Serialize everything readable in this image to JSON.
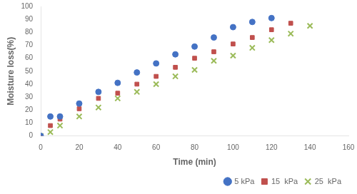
{
  "chart_data": {
    "type": "scatter",
    "x_label": "Time (min)",
    "y_label": "Moisture loss(%)",
    "series": [
      {
        "name": "5 kPa",
        "color": "#4472C4",
        "marker": "circle",
        "x": [
          0,
          5,
          10,
          20,
          30,
          40,
          50,
          60,
          70,
          80,
          90,
          100,
          110,
          120
        ],
        "values": [
          0,
          15,
          15,
          25,
          34,
          41,
          49,
          56,
          63,
          69,
          76,
          84,
          88,
          91
        ]
      },
      {
        "name": "15  kPa",
        "color": "#C0504D",
        "marker": "square",
        "x": [
          0,
          5,
          10,
          20,
          30,
          40,
          50,
          60,
          70,
          80,
          90,
          100,
          110,
          120,
          130
        ],
        "values": [
          0,
          8,
          13,
          21,
          29,
          33,
          40,
          46,
          53,
          60,
          65,
          71,
          76,
          82,
          87
        ]
      },
      {
        "name": "25  kPa",
        "color": "#9BBB59",
        "marker": "x",
        "x": [
          0,
          5,
          10,
          20,
          30,
          40,
          50,
          60,
          70,
          80,
          90,
          100,
          110,
          120,
          130,
          140
        ],
        "values": [
          0,
          3,
          8,
          15,
          22,
          29,
          34,
          40,
          46,
          51,
          58,
          62,
          68,
          74,
          79,
          85
        ]
      }
    ],
    "xlim": [
      0,
      160
    ],
    "ylim": [
      0,
      100
    ],
    "xticks": [
      0,
      20,
      40,
      60,
      80,
      100,
      120,
      140,
      160
    ],
    "yticks": [
      0,
      10,
      20,
      30,
      40,
      50,
      60,
      70,
      80,
      90,
      100
    ],
    "grid": false,
    "legend": "lower right"
  }
}
